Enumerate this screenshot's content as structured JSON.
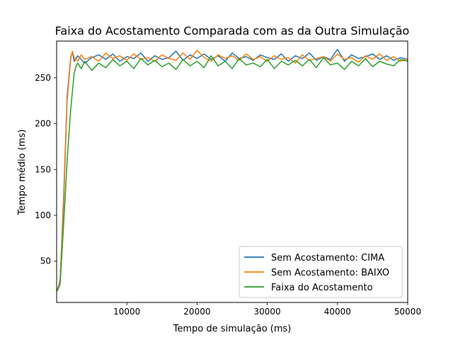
{
  "chart_data": {
    "type": "line",
    "title": "Faixa do Acostamento Comparada com as da Outra Simulação",
    "xlabel": "Tempo de simulação (ms)",
    "ylabel": "Tempo médio (ms)",
    "xlim": [
      0,
      50000
    ],
    "ylim": [
      5,
      290
    ],
    "xticks": [
      10000,
      20000,
      30000,
      40000,
      50000
    ],
    "yticks": [
      50,
      100,
      150,
      200,
      250
    ],
    "grid": false,
    "legend_position": "lower-right",
    "series": [
      {
        "name": "Sem Acostamento: CIMA",
        "color": "#1f77b4",
        "x": [
          0,
          250,
          500,
          1000,
          1500,
          2000,
          2250,
          2500,
          3000,
          3500,
          4000,
          5000,
          6000,
          7000,
          8000,
          9000,
          10000,
          11000,
          12000,
          13000,
          14000,
          15000,
          16000,
          17000,
          18000,
          19000,
          20000,
          21000,
          22000,
          23000,
          24000,
          25000,
          26000,
          27000,
          28000,
          29000,
          30000,
          31000,
          32000,
          33000,
          34000,
          35000,
          36000,
          37000,
          38000,
          39000,
          40000,
          41000,
          42000,
          43000,
          44000,
          45000,
          46000,
          47000,
          48000,
          49000,
          50000
        ],
        "y": [
          18,
          22,
          30,
          120,
          230,
          272,
          278,
          268,
          274,
          270,
          266,
          272,
          275,
          270,
          276,
          268,
          273,
          271,
          277,
          268,
          274,
          270,
          272,
          279,
          269,
          275,
          271,
          276,
          270,
          274,
          268,
          277,
          271,
          273,
          269,
          275,
          272,
          270,
          276,
          268,
          274,
          271,
          277,
          269,
          273,
          270,
          281,
          268,
          275,
          271,
          273,
          276,
          270,
          274,
          269,
          272,
          270
        ]
      },
      {
        "name": "Sem Acostamento: BAIXO",
        "color": "#ff7f0e",
        "x": [
          0,
          250,
          500,
          1000,
          1500,
          2000,
          2250,
          2500,
          3000,
          3500,
          4000,
          5000,
          6000,
          7000,
          8000,
          9000,
          10000,
          11000,
          12000,
          13000,
          14000,
          15000,
          16000,
          17000,
          18000,
          19000,
          20000,
          21000,
          22000,
          23000,
          24000,
          25000,
          26000,
          27000,
          28000,
          29000,
          30000,
          31000,
          32000,
          33000,
          34000,
          35000,
          36000,
          37000,
          38000,
          39000,
          40000,
          41000,
          42000,
          43000,
          44000,
          45000,
          46000,
          47000,
          48000,
          49000,
          50000
        ],
        "y": [
          18,
          21,
          28,
          110,
          225,
          270,
          279,
          272,
          268,
          275,
          270,
          273,
          268,
          277,
          271,
          274,
          269,
          276,
          270,
          272,
          268,
          275,
          271,
          269,
          277,
          270,
          280,
          272,
          268,
          275,
          271,
          274,
          269,
          276,
          270,
          273,
          268,
          274,
          270,
          272,
          266,
          275,
          269,
          271,
          273,
          268,
          276,
          270,
          272,
          267,
          274,
          270,
          276,
          269,
          273,
          268,
          271
        ]
      },
      {
        "name": "Faixa do Acostamento",
        "color": "#2ca02c",
        "x": [
          0,
          250,
          500,
          1000,
          1500,
          2000,
          2500,
          2750,
          3000,
          3500,
          4000,
          5000,
          6000,
          7000,
          8000,
          9000,
          10000,
          11000,
          12000,
          13000,
          14000,
          15000,
          16000,
          17000,
          18000,
          19000,
          20000,
          21000,
          22000,
          23000,
          24000,
          25000,
          26000,
          27000,
          28000,
          29000,
          30000,
          31000,
          32000,
          33000,
          34000,
          35000,
          36000,
          37000,
          38000,
          39000,
          40000,
          41000,
          42000,
          43000,
          44000,
          45000,
          46000,
          47000,
          48000,
          49000,
          50000
        ],
        "y": [
          17,
          20,
          25,
          90,
          160,
          215,
          255,
          262,
          266,
          260,
          268,
          258,
          266,
          261,
          270,
          263,
          268,
          260,
          271,
          264,
          269,
          262,
          266,
          259,
          270,
          263,
          268,
          261,
          274,
          263,
          268,
          260,
          271,
          264,
          266,
          262,
          270,
          260,
          268,
          264,
          269,
          263,
          270,
          261,
          272,
          264,
          266,
          259,
          268,
          263,
          271,
          262,
          268,
          265,
          263,
          270,
          268
        ]
      }
    ]
  }
}
